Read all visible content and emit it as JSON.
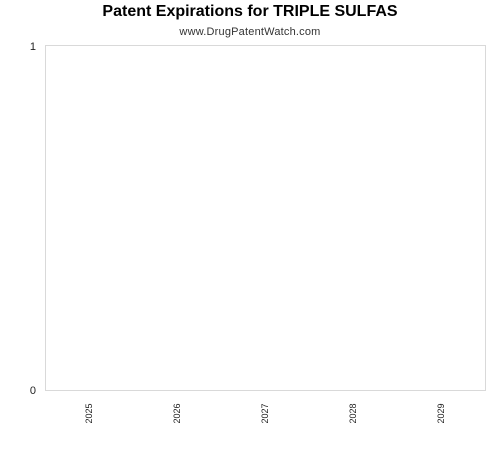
{
  "chart_data": {
    "type": "bar",
    "title": "Patent Expirations for TRIPLE SULFAS",
    "subtitle": "www.DrugPatentWatch.com",
    "categories": [
      "2025",
      "2026",
      "2027",
      "2028",
      "2029"
    ],
    "values": [
      0,
      0,
      0,
      0,
      0
    ],
    "xlabel": "",
    "ylabel": "",
    "ylim": [
      0,
      1
    ],
    "y_ticks": [
      "0",
      "1"
    ],
    "grid": false,
    "legend": "none",
    "colors": {
      "plot_border": "#d9d9d9",
      "bar": "#4a7ab5"
    }
  }
}
